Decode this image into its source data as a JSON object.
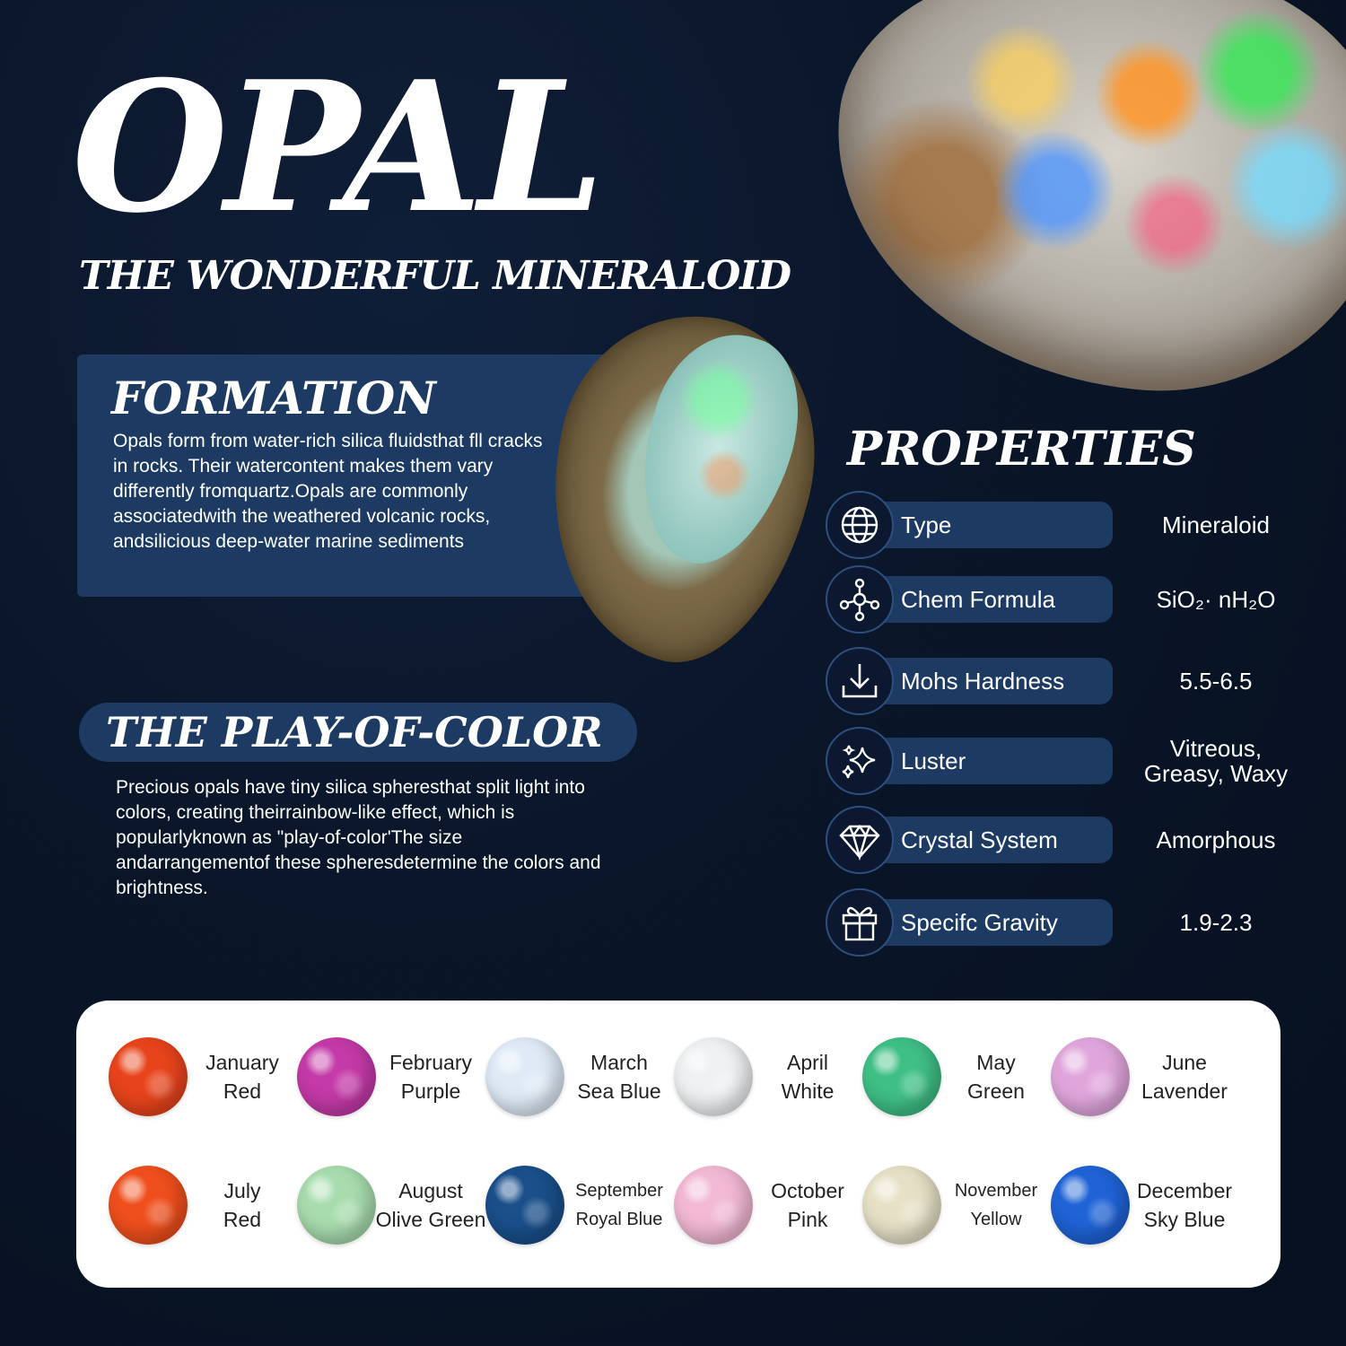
{
  "title": "OPAL",
  "subtitle": "THE WONDERFUL MINERALOID",
  "formation": {
    "title": "FORMATION",
    "text": "Opals form from water-rich silica fluidsthat fll cracks in rocks. Their watercontent makes them vary differently fromquartz.Opals are commonly associatedwith the weathered volcanic rocks, andsilicious deep-water marine sediments"
  },
  "play_of_color": {
    "title": "THE PLAY-OF-COLOR",
    "text": "Precious opals have tiny silica spheresthat split light into colors, creating theirrainbow-like effect, which is popularlyknown as \"play-of-color'The size andarrangementof these spheresdetermine the colors and brightness."
  },
  "properties": {
    "title": "PROPERTIES",
    "items": [
      {
        "label": "Type",
        "value": "Mineraloid",
        "value2": "",
        "icon": "globe-icon"
      },
      {
        "label": "Chem Formula",
        "value": "SiO₂· nH₂O",
        "value2": "",
        "icon": "molecule-icon"
      },
      {
        "label": "Mohs Hardness",
        "value": "5.5-6.5",
        "value2": "",
        "icon": "download-icon"
      },
      {
        "label": "Luster",
        "value": "Vitreous,",
        "value2": "Greasy, Waxy",
        "icon": "sparkle-icon"
      },
      {
        "label": "Crystal System",
        "value": "Amorphous",
        "value2": "",
        "icon": "diamond-icon"
      },
      {
        "label": "Specifc  Gravity",
        "value": "1.9-2.3",
        "value2": "",
        "icon": "gift-icon"
      }
    ]
  },
  "birthstones": [
    {
      "month": "January",
      "color": "Red",
      "hex": "#e8441c"
    },
    {
      "month": "February",
      "color": "Purple",
      "hex": "#c43aa8"
    },
    {
      "month": "March",
      "color": "Sea Blue",
      "hex": "#dfeaf6"
    },
    {
      "month": "April",
      "color": "White",
      "hex": "#eef0f2"
    },
    {
      "month": "May",
      "color": "Green",
      "hex": "#3fbf86"
    },
    {
      "month": "June",
      "color": "Lavender",
      "hex": "#e0a6dc"
    },
    {
      "month": "July",
      "color": "Red",
      "hex": "#ef4f1d"
    },
    {
      "month": "August",
      "color": "Olive Green",
      "hex": "#a8dcae"
    },
    {
      "month": "September",
      "color": "Royal Blue",
      "hex": "#1a4f8a"
    },
    {
      "month": "October",
      "color": "Pink",
      "hex": "#f2b8d4"
    },
    {
      "month": "November",
      "color": "Yellow",
      "hex": "#e6e0c6"
    },
    {
      "month": "December",
      "color": "Sky Blue",
      "hex": "#1f63d6"
    }
  ]
}
